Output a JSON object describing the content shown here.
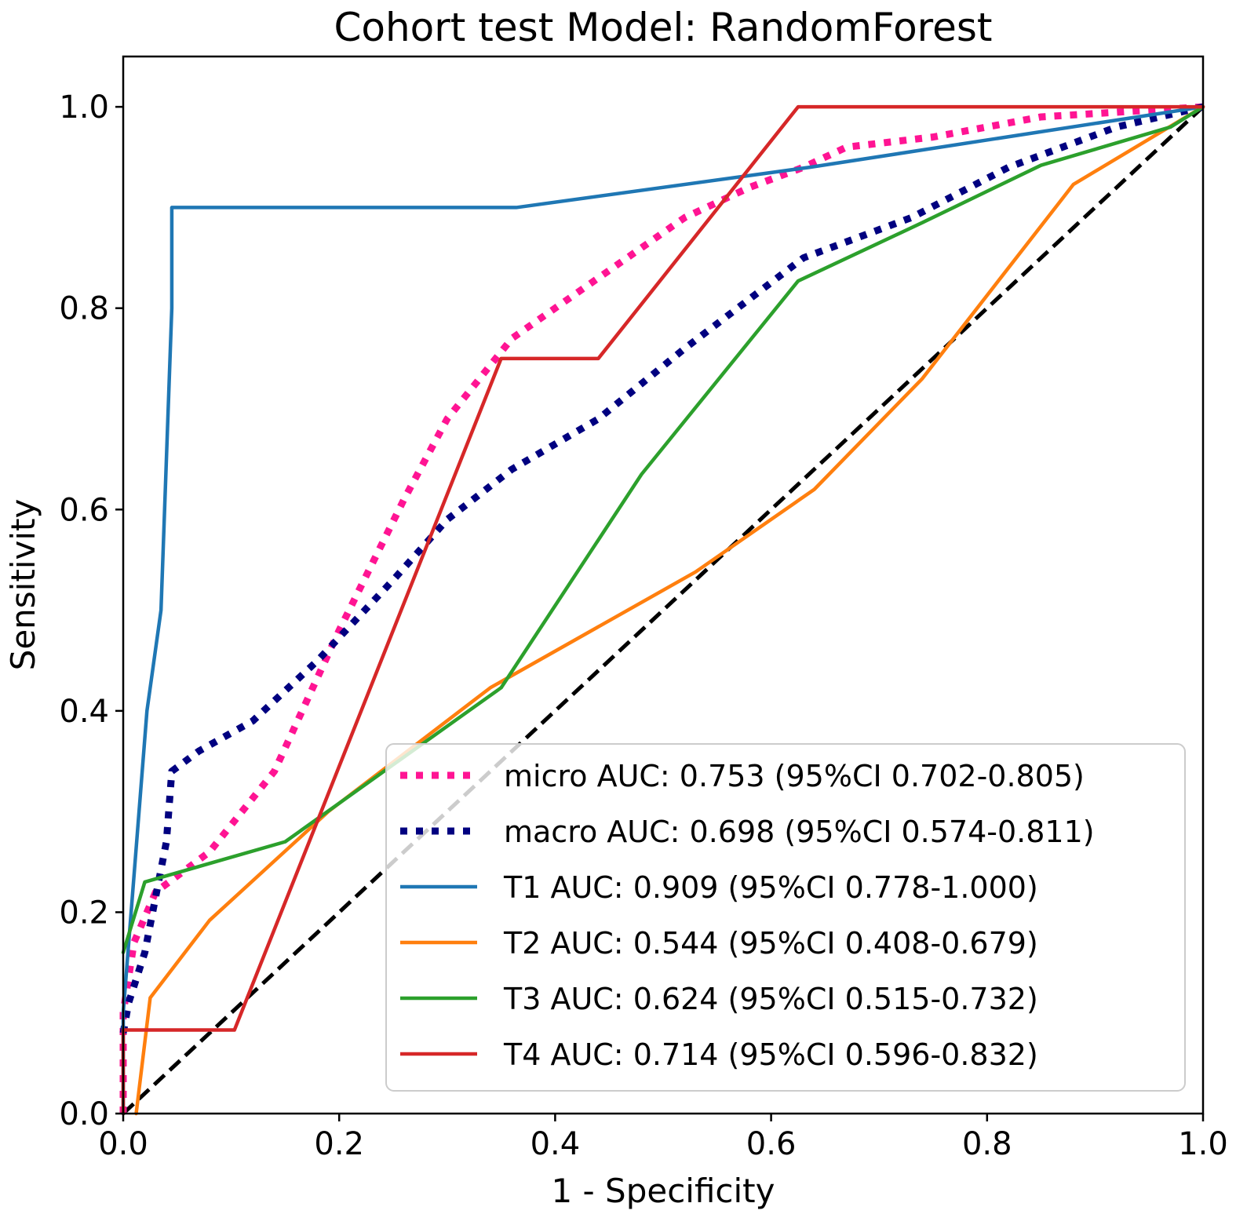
{
  "chart_data": {
    "type": "line",
    "title": "Cohort test Model: RandomForest",
    "xlabel": "1 - Specificity",
    "ylabel": "Sensitivity",
    "xlim": [
      0.0,
      1.0
    ],
    "ylim": [
      0.0,
      1.05
    ],
    "xticks": [
      "0.0",
      "0.2",
      "0.4",
      "0.6",
      "0.8",
      "1.0"
    ],
    "yticks": [
      "0.0",
      "0.2",
      "0.4",
      "0.6",
      "0.8",
      "1.0"
    ],
    "legend_position": "lower-right",
    "diagonal": {
      "name": "chance",
      "color": "#000000",
      "style": "dashed",
      "x": [
        0,
        1
      ],
      "y": [
        0,
        1
      ]
    },
    "series": [
      {
        "name": "micro AUC: 0.753 (95%CI 0.702-0.805)",
        "color": "#ff1493",
        "style": "dotted",
        "x": [
          0.0,
          0.0,
          0.01,
          0.03,
          0.08,
          0.14,
          0.2,
          0.26,
          0.3,
          0.36,
          0.44,
          0.52,
          0.58,
          0.63,
          0.67,
          0.75,
          0.85,
          1.0
        ],
        "y": [
          0.0,
          0.1,
          0.17,
          0.22,
          0.26,
          0.34,
          0.48,
          0.61,
          0.69,
          0.77,
          0.83,
          0.89,
          0.92,
          0.94,
          0.96,
          0.97,
          0.99,
          1.0
        ]
      },
      {
        "name": "macro AUC: 0.698 (95%CI 0.574-0.811)",
        "color": "#000080",
        "style": "dotted",
        "x": [
          0.0,
          0.005,
          0.02,
          0.04,
          0.045,
          0.07,
          0.12,
          0.18,
          0.25,
          0.3,
          0.36,
          0.44,
          0.52,
          0.63,
          0.73,
          0.82,
          0.92,
          1.0
        ],
        "y": [
          0.08,
          0.11,
          0.16,
          0.27,
          0.34,
          0.36,
          0.39,
          0.45,
          0.53,
          0.59,
          0.64,
          0.69,
          0.76,
          0.85,
          0.89,
          0.94,
          0.98,
          1.0
        ]
      },
      {
        "name": "T1 AUC: 0.909 (95%CI 0.778-1.000)",
        "color": "#1f77b4",
        "style": "solid",
        "x": [
          0.0,
          0.0,
          0.022,
          0.035,
          0.045,
          0.045,
          0.364,
          0.636,
          1.0
        ],
        "y": [
          0.0,
          0.1,
          0.4,
          0.5,
          0.8,
          0.9,
          0.9,
          0.94,
          1.0
        ]
      },
      {
        "name": "T2 AUC: 0.544 (95%CI 0.408-0.679)",
        "color": "#ff7f0e",
        "style": "solid",
        "x": [
          0.012,
          0.025,
          0.08,
          0.19,
          0.34,
          0.53,
          0.64,
          0.74,
          0.88,
          1.0
        ],
        "y": [
          0.0,
          0.115,
          0.192,
          0.3,
          0.423,
          0.538,
          0.62,
          0.73,
          0.923,
          1.0
        ]
      },
      {
        "name": "T3 AUC: 0.624 (95%CI 0.515-0.732)",
        "color": "#2ca02c",
        "style": "solid",
        "x": [
          0.0,
          0.02,
          0.15,
          0.35,
          0.48,
          0.625,
          0.74,
          0.85,
          0.97,
          1.0
        ],
        "y": [
          0.16,
          0.23,
          0.27,
          0.423,
          0.635,
          0.827,
          0.885,
          0.942,
          0.98,
          1.0
        ]
      },
      {
        "name": "T4 AUC: 0.714 (95%CI 0.596-0.832)",
        "color": "#d62728",
        "style": "solid",
        "x": [
          0.0,
          0.0,
          0.103,
          0.35,
          0.44,
          0.625,
          1.0
        ],
        "y": [
          0.0,
          0.083,
          0.083,
          0.75,
          0.75,
          1.0,
          1.0
        ]
      }
    ]
  }
}
